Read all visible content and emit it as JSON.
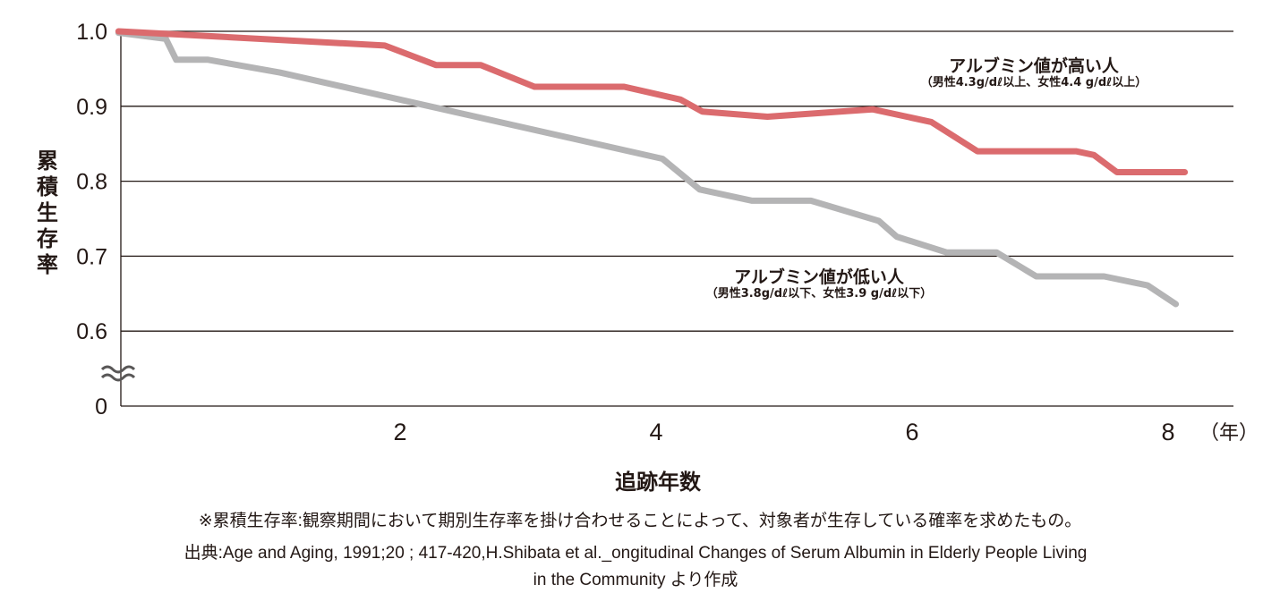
{
  "chart_data": {
    "type": "line",
    "title": "",
    "xlabel": "追跡年数",
    "ylabel": "累積生存率",
    "x_unit": "（年）",
    "xlim": [
      -0.18,
      8.5
    ],
    "ylim": [
      0.5,
      1.0
    ],
    "y_axis_break": true,
    "yticks": [
      {
        "value": 1.0,
        "label": "1.0"
      },
      {
        "value": 0.9,
        "label": "0.9"
      },
      {
        "value": 0.8,
        "label": "0.8"
      },
      {
        "value": 0.7,
        "label": "0.7"
      },
      {
        "value": 0.6,
        "label": "0.6"
      },
      {
        "value": 0.5,
        "label": "0"
      }
    ],
    "xticks": [
      {
        "value": 2,
        "label": "2"
      },
      {
        "value": 4,
        "label": "4"
      },
      {
        "value": 6,
        "label": "6"
      },
      {
        "value": 8,
        "label": "8"
      }
    ],
    "grid": "horizontal",
    "series": [
      {
        "name": "アルブミン値が高い人",
        "detail": "（男性4.3g/dℓ以上、女性4.4 g/dℓ以上）",
        "color": "#db6b6e",
        "x": [
          -0.2,
          1.88,
          2.28,
          2.63,
          3.05,
          3.75,
          4.19,
          4.36,
          4.87,
          5.69,
          6.15,
          6.51,
          7.28,
          7.42,
          7.6,
          8.13
        ],
        "y": [
          1.0,
          0.981,
          0.955,
          0.955,
          0.926,
          0.926,
          0.909,
          0.893,
          0.886,
          0.896,
          0.879,
          0.84,
          0.84,
          0.835,
          0.812,
          0.812
        ]
      },
      {
        "name": "アルブミン値が低い人",
        "detail": "（男性3.8g/dℓ以下、女性3.9 g/dℓ以下）",
        "color": "#b4b4b5",
        "x": [
          -0.2,
          0.17,
          0.25,
          0.5,
          1.06,
          4.05,
          4.34,
          4.75,
          5.21,
          5.74,
          5.88,
          6.27,
          6.66,
          6.97,
          7.5,
          7.84,
          8.06
        ],
        "y": [
          0.998,
          0.99,
          0.962,
          0.962,
          0.945,
          0.83,
          0.789,
          0.774,
          0.774,
          0.747,
          0.726,
          0.705,
          0.705,
          0.673,
          0.673,
          0.661,
          0.636
        ]
      }
    ]
  },
  "footnotes": {
    "definition": "※累積生存率:観察期間において期別生存率を掛け合わせることによって、対象者が生存している確率を求めたもの。",
    "source_line1": "出典:Age and Aging, 1991;20 ; 417-420,H.Shibata et al._ongitudinal Changes of Serum Albumin in Elderly People Living",
    "source_line2": "in the Community より作成"
  },
  "colors": {
    "axis": "#231815",
    "text": "#231815",
    "high": "#db6b6e",
    "low": "#b4b4b5"
  }
}
